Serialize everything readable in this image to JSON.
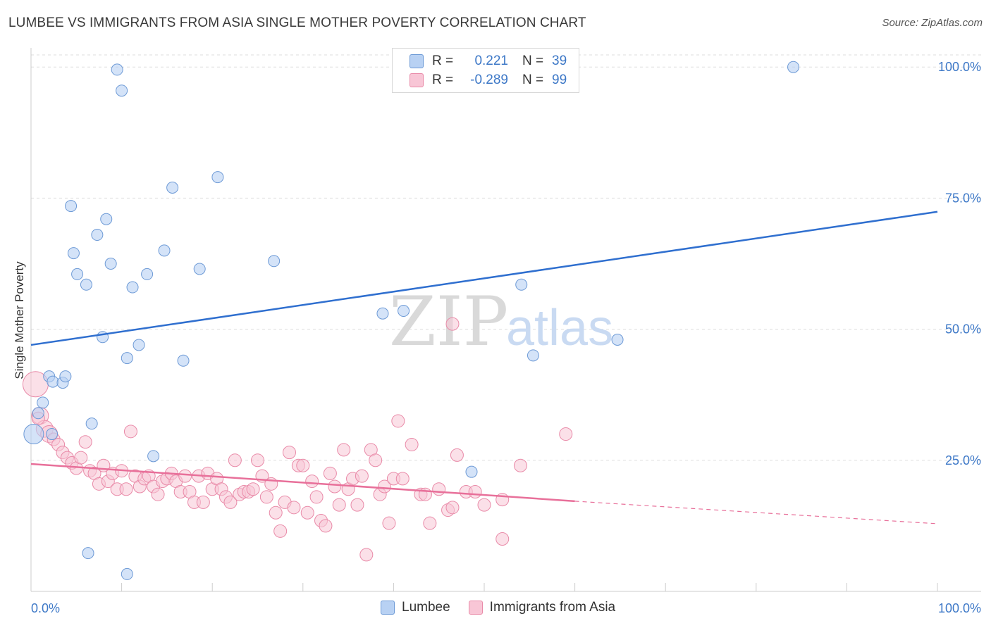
{
  "title": "LUMBEE VS IMMIGRANTS FROM ASIA SINGLE MOTHER POVERTY CORRELATION CHART",
  "source": "Source: ZipAtlas.com",
  "watermark": {
    "zip": "ZIP",
    "atlas": "atlas"
  },
  "legend": {
    "rows": [
      {
        "r_label": "R =",
        "r_value": "0.221",
        "n_label": "N =",
        "n_value": "39"
      },
      {
        "r_label": "R =",
        "r_value": "-0.289",
        "n_label": "N =",
        "n_value": "99"
      }
    ]
  },
  "bottom_legend": {
    "series1": "Lumbee",
    "series2": "Immigrants from Asia"
  },
  "colors": {
    "lumbee_fill": "#b8d1f3",
    "lumbee_stroke": "#6d9ad6",
    "lumbee_line": "#2f6fcf",
    "asia_fill": "#f8c6d6",
    "asia_stroke": "#e98aa8",
    "asia_line": "#e8709a",
    "axis_text": "#3d78c7",
    "grid": "#dddddd"
  },
  "chart_data": {
    "type": "scatter",
    "title": "LUMBEE VS IMMIGRANTS FROM ASIA SINGLE MOTHER POVERTY CORRELATION CHART",
    "xlabel": "",
    "ylabel": "Single Mother Poverty",
    "xlim": [
      0,
      100
    ],
    "ylim": [
      0,
      100
    ],
    "x_tick_labels": [
      "0.0%",
      "100.0%"
    ],
    "y_ticks": [
      25,
      50,
      75,
      100
    ],
    "y_tick_labels": [
      "25.0%",
      "50.0%",
      "75.0%",
      "100.0%"
    ],
    "grid": true,
    "legend_position": "top-center",
    "series": [
      {
        "name": "Lumbee",
        "r": 0.221,
        "n": 39,
        "trend": {
          "x": [
            0,
            100
          ],
          "y": [
            47.0,
            72.4
          ]
        },
        "points": [
          {
            "x": 0.3,
            "y": 30.0
          },
          {
            "x": 0.8,
            "y": 34.0
          },
          {
            "x": 1.3,
            "y": 36.0
          },
          {
            "x": 2.0,
            "y": 41.0
          },
          {
            "x": 2.3,
            "y": 30.0
          },
          {
            "x": 2.4,
            "y": 40.0
          },
          {
            "x": 3.5,
            "y": 39.8
          },
          {
            "x": 3.8,
            "y": 41.0
          },
          {
            "x": 4.4,
            "y": 73.5
          },
          {
            "x": 4.7,
            "y": 64.5
          },
          {
            "x": 5.1,
            "y": 60.5
          },
          {
            "x": 6.1,
            "y": 58.5
          },
          {
            "x": 6.7,
            "y": 32.0
          },
          {
            "x": 7.3,
            "y": 68.0
          },
          {
            "x": 7.9,
            "y": 48.5
          },
          {
            "x": 8.3,
            "y": 71.0
          },
          {
            "x": 8.8,
            "y": 62.5
          },
          {
            "x": 9.5,
            "y": 99.5
          },
          {
            "x": 10.0,
            "y": 95.5
          },
          {
            "x": 10.6,
            "y": 44.5
          },
          {
            "x": 11.2,
            "y": 58.0
          },
          {
            "x": 11.9,
            "y": 47.0
          },
          {
            "x": 12.8,
            "y": 60.5
          },
          {
            "x": 13.5,
            "y": 25.8
          },
          {
            "x": 14.7,
            "y": 65.0
          },
          {
            "x": 15.6,
            "y": 77.0
          },
          {
            "x": 16.8,
            "y": 44.0
          },
          {
            "x": 18.6,
            "y": 61.5
          },
          {
            "x": 20.6,
            "y": 79.0
          },
          {
            "x": 26.8,
            "y": 63.0
          },
          {
            "x": 38.8,
            "y": 53.0
          },
          {
            "x": 41.1,
            "y": 53.5
          },
          {
            "x": 48.6,
            "y": 22.8
          },
          {
            "x": 54.1,
            "y": 58.5
          },
          {
            "x": 55.4,
            "y": 45.0
          },
          {
            "x": 64.7,
            "y": 48.0
          },
          {
            "x": 84.1,
            "y": 100.0
          },
          {
            "x": 6.3,
            "y": 7.3
          },
          {
            "x": 10.6,
            "y": 3.3
          }
        ]
      },
      {
        "name": "Immigrants from Asia",
        "r": -0.289,
        "n": 99,
        "trend": {
          "x": [
            0,
            60,
            100
          ],
          "y": [
            24.3,
            17.2,
            12.9
          ],
          "solid_until": 60
        },
        "points": [
          {
            "x": 0.5,
            "y": 39.5
          },
          {
            "x": 1.0,
            "y": 33.5
          },
          {
            "x": 1.5,
            "y": 31.0
          },
          {
            "x": 2.0,
            "y": 30.0
          },
          {
            "x": 2.5,
            "y": 29.0
          },
          {
            "x": 3.0,
            "y": 28.0
          },
          {
            "x": 3.5,
            "y": 26.5
          },
          {
            "x": 4.0,
            "y": 25.5
          },
          {
            "x": 4.5,
            "y": 24.5
          },
          {
            "x": 5.0,
            "y": 23.5
          },
          {
            "x": 5.5,
            "y": 25.5
          },
          {
            "x": 6.0,
            "y": 28.5
          },
          {
            "x": 6.5,
            "y": 23.0
          },
          {
            "x": 7.0,
            "y": 22.5
          },
          {
            "x": 7.5,
            "y": 20.5
          },
          {
            "x": 8.0,
            "y": 24.0
          },
          {
            "x": 8.5,
            "y": 21.0
          },
          {
            "x": 9.0,
            "y": 22.5
          },
          {
            "x": 9.5,
            "y": 19.5
          },
          {
            "x": 10.0,
            "y": 23.0
          },
          {
            "x": 10.5,
            "y": 19.5
          },
          {
            "x": 11.0,
            "y": 30.5
          },
          {
            "x": 11.5,
            "y": 22.0
          },
          {
            "x": 12.0,
            "y": 20.0
          },
          {
            "x": 12.5,
            "y": 21.5
          },
          {
            "x": 13.0,
            "y": 22.0
          },
          {
            "x": 13.5,
            "y": 20.0
          },
          {
            "x": 14.0,
            "y": 18.5
          },
          {
            "x": 14.5,
            "y": 21.0
          },
          {
            "x": 15.0,
            "y": 21.5
          },
          {
            "x": 15.5,
            "y": 22.5
          },
          {
            "x": 16.0,
            "y": 21.0
          },
          {
            "x": 16.5,
            "y": 19.0
          },
          {
            "x": 17.0,
            "y": 22.0
          },
          {
            "x": 17.5,
            "y": 19.0
          },
          {
            "x": 18.0,
            "y": 17.0
          },
          {
            "x": 18.5,
            "y": 22.0
          },
          {
            "x": 19.0,
            "y": 17.0
          },
          {
            "x": 19.5,
            "y": 22.5
          },
          {
            "x": 20.0,
            "y": 19.5
          },
          {
            "x": 20.5,
            "y": 21.5
          },
          {
            "x": 21.0,
            "y": 19.5
          },
          {
            "x": 21.5,
            "y": 18.0
          },
          {
            "x": 22.0,
            "y": 17.0
          },
          {
            "x": 22.5,
            "y": 25.0
          },
          {
            "x": 23.0,
            "y": 18.5
          },
          {
            "x": 23.5,
            "y": 19.0
          },
          {
            "x": 24.0,
            "y": 19.0
          },
          {
            "x": 24.5,
            "y": 19.5
          },
          {
            "x": 25.0,
            "y": 25.0
          },
          {
            "x": 25.5,
            "y": 22.0
          },
          {
            "x": 26.0,
            "y": 18.0
          },
          {
            "x": 26.5,
            "y": 20.5
          },
          {
            "x": 27.0,
            "y": 15.0
          },
          {
            "x": 27.5,
            "y": 11.5
          },
          {
            "x": 28.0,
            "y": 17.0
          },
          {
            "x": 28.5,
            "y": 26.5
          },
          {
            "x": 29.0,
            "y": 16.0
          },
          {
            "x": 29.5,
            "y": 24.0
          },
          {
            "x": 30.0,
            "y": 24.0
          },
          {
            "x": 30.5,
            "y": 15.0
          },
          {
            "x": 31.0,
            "y": 21.0
          },
          {
            "x": 31.5,
            "y": 18.0
          },
          {
            "x": 32.0,
            "y": 13.5
          },
          {
            "x": 32.5,
            "y": 12.5
          },
          {
            "x": 33.0,
            "y": 22.5
          },
          {
            "x": 33.5,
            "y": 20.0
          },
          {
            "x": 34.0,
            "y": 16.5
          },
          {
            "x": 34.5,
            "y": 27.0
          },
          {
            "x": 35.0,
            "y": 19.5
          },
          {
            "x": 35.5,
            "y": 21.5
          },
          {
            "x": 36.0,
            "y": 16.5
          },
          {
            "x": 36.5,
            "y": 22.0
          },
          {
            "x": 37.0,
            "y": 7.0
          },
          {
            "x": 37.5,
            "y": 27.0
          },
          {
            "x": 38.0,
            "y": 25.0
          },
          {
            "x": 38.5,
            "y": 18.5
          },
          {
            "x": 39.0,
            "y": 20.0
          },
          {
            "x": 39.5,
            "y": 13.0
          },
          {
            "x": 40.0,
            "y": 21.5
          },
          {
            "x": 40.5,
            "y": 32.5
          },
          {
            "x": 41.0,
            "y": 21.5
          },
          {
            "x": 42.0,
            "y": 28.0
          },
          {
            "x": 43.0,
            "y": 18.5
          },
          {
            "x": 43.5,
            "y": 18.5
          },
          {
            "x": 44.0,
            "y": 13.0
          },
          {
            "x": 45.0,
            "y": 19.5
          },
          {
            "x": 46.0,
            "y": 15.5
          },
          {
            "x": 46.5,
            "y": 16.0
          },
          {
            "x": 47.0,
            "y": 26.0
          },
          {
            "x": 46.5,
            "y": 51.0
          },
          {
            "x": 48.0,
            "y": 19.0
          },
          {
            "x": 49.0,
            "y": 19.0
          },
          {
            "x": 50.0,
            "y": 16.5
          },
          {
            "x": 52.0,
            "y": 17.5
          },
          {
            "x": 52.0,
            "y": 10.0
          },
          {
            "x": 54.0,
            "y": 24.0
          },
          {
            "x": 59.0,
            "y": 30.0
          },
          {
            "x": 0.8,
            "y": 33.0
          }
        ]
      }
    ]
  }
}
